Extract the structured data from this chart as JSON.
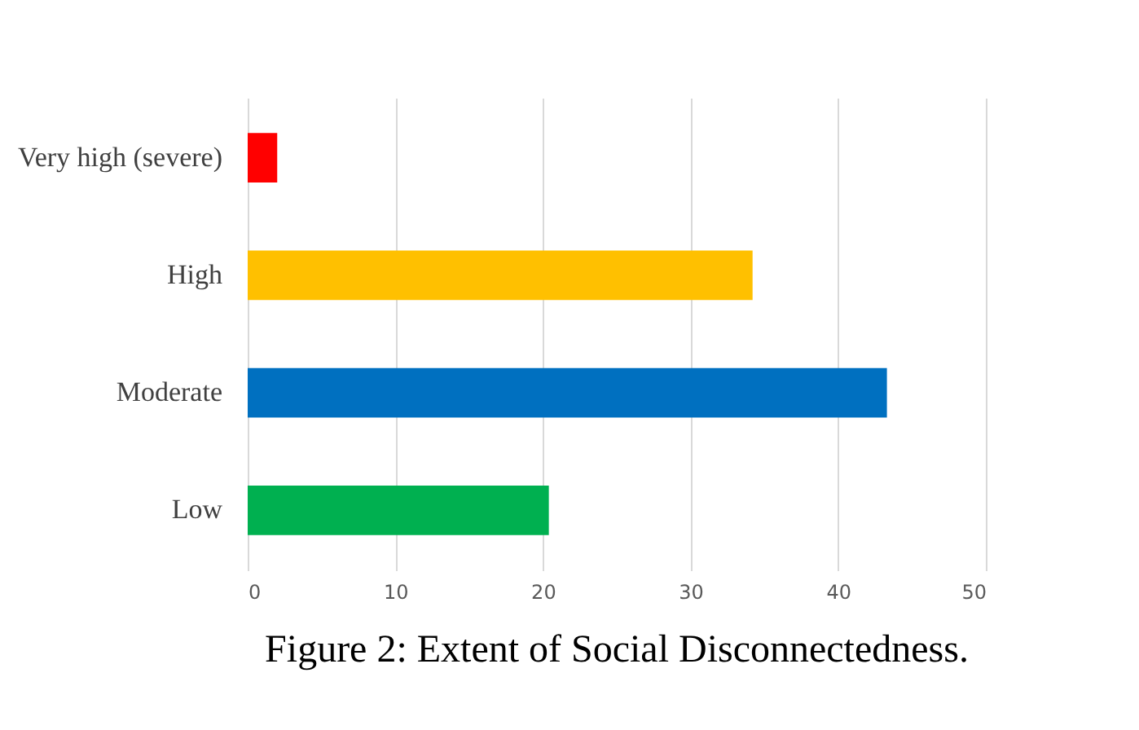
{
  "chart_data": {
    "type": "bar",
    "orientation": "horizontal",
    "title": "Figure 2: Extent of Social Disconnectedness.",
    "categories": [
      "Very high (severe)",
      "High",
      "Moderate",
      "Low"
    ],
    "values": [
      2.0,
      34.2,
      43.3,
      20.4
    ],
    "colors": [
      "#ff0000",
      "#ffc000",
      "#0070c0",
      "#00b050"
    ],
    "xlim": [
      0,
      50
    ],
    "xticks": [
      0,
      10,
      20,
      30,
      40,
      50
    ],
    "grid": "x"
  }
}
